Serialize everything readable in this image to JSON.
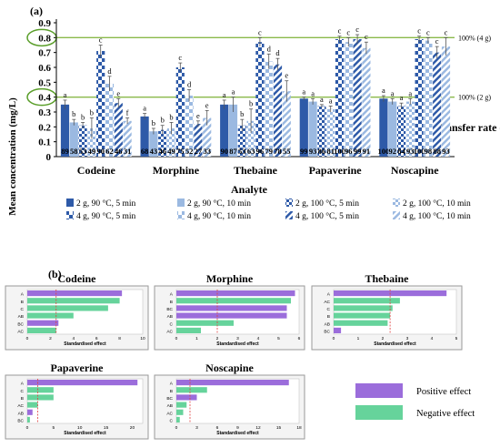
{
  "panel_a_label": "(a)",
  "panel_b_label": "(b)",
  "colors": {
    "s0": "#2e5aa8",
    "s1": "#9bb9e1",
    "s2": "#2e5aa8",
    "s3": "#9bb9e1",
    "s4": "#2e5aa8",
    "s5": "#9bb9e1",
    "s6": "#2e5aa8",
    "s7": "#9bb9e1",
    "positive": "#9b6ddb",
    "negative": "#66d39b",
    "refline": "#8ab94a",
    "errbar": "#555555"
  },
  "legend_b": {
    "positive": "Positive effect",
    "negative": "Negative effect"
  },
  "chart_data": [
    {
      "type": "bar",
      "ylabel": "Mean concentration (mg/L)",
      "xlabel": "Analyte",
      "right_label": "Transfer rate (%)",
      "ylim": [
        0,
        0.9
      ],
      "yticks": [
        "0",
        "0.1",
        "0.2",
        "0.3",
        "0.4",
        "0.5",
        "0.6",
        "0.7",
        "0.8",
        "0.9"
      ],
      "reflines": [
        {
          "y": 0.8,
          "label": "100% (4 g)"
        },
        {
          "y": 0.4,
          "label": "100% (2 g)"
        }
      ],
      "categories": [
        "Codeine",
        "Morphine",
        "Thebaine",
        "Papaverine",
        "Noscapine"
      ],
      "series": [
        {
          "name": "2 g, 90 °C, 5 min",
          "pattern": "solid-dark",
          "values": [
            0.35,
            0.27,
            0.35,
            0.39,
            0.39
          ],
          "err": [
            0.03,
            0.02,
            0.03,
            0.01,
            0.02
          ],
          "letters": [
            "a",
            "a",
            "a",
            "a",
            "a"
          ],
          "rates": [
            "89",
            "68",
            "90",
            "99",
            "100"
          ]
        },
        {
          "name": "2 g, 90 °C, 10 min",
          "pattern": "solid-light",
          "values": [
            0.23,
            0.17,
            0.35,
            0.37,
            0.37
          ],
          "err": [
            0.02,
            0.02,
            0.05,
            0.02,
            0.02
          ],
          "letters": [
            "b",
            "b",
            "a",
            "a",
            "a"
          ],
          "rates": [
            "58",
            "43",
            "87",
            "93",
            "92"
          ]
        },
        {
          "name": "2 g, 100 °C, 5 min",
          "pattern": "check-dark",
          "values": [
            0.21,
            0.18,
            0.21,
            0.34,
            0.34
          ],
          "err": [
            0.02,
            0.03,
            0.04,
            0.01,
            0.02
          ],
          "letters": [
            "b",
            "b",
            "b",
            "a",
            "a"
          ],
          "rates": [
            "53",
            "46",
            "53",
            "86",
            "84"
          ]
        },
        {
          "name": "2 g, 100 °C, 10 min",
          "pattern": "check-light",
          "values": [
            0.19,
            0.19,
            0.24,
            0.32,
            0.37
          ],
          "err": [
            0.07,
            0.04,
            0.08,
            0.02,
            0.02
          ],
          "letters": [
            "b",
            "b",
            "b",
            "a",
            "a"
          ],
          "rates": [
            "49",
            "49",
            "63",
            "81",
            "93"
          ]
        },
        {
          "name": "4 g, 90 °C, 5 min",
          "pattern": "check-dark-4g",
          "values": [
            0.71,
            0.6,
            0.77,
            0.79,
            0.79
          ],
          "err": [
            0.04,
            0.03,
            0.03,
            0.02,
            0.02
          ],
          "letters": [
            "c",
            "c",
            "c",
            "c",
            "c"
          ],
          "rates": [
            "90",
            "75",
            "96",
            "100",
            "100"
          ]
        },
        {
          "name": "4 g, 90 °C, 10 min",
          "pattern": "check-light-4g",
          "values": [
            0.49,
            0.41,
            0.64,
            0.77,
            0.78
          ],
          "err": [
            0.05,
            0.04,
            0.05,
            0.03,
            0.02
          ],
          "letters": [
            "d",
            "d",
            "d",
            "c",
            "c"
          ],
          "rates": [
            "62",
            "52",
            "79",
            "96",
            "98"
          ]
        },
        {
          "name": "4 g, 100 °C, 5 min",
          "pattern": "stripe-dark",
          "values": [
            0.36,
            0.22,
            0.62,
            0.79,
            0.7
          ],
          "err": [
            0.03,
            0.02,
            0.04,
            0.03,
            0.04
          ],
          "letters": [
            "e",
            "e",
            "d",
            "c",
            "c"
          ],
          "rates": [
            "46",
            "27",
            "78",
            "99",
            "88"
          ]
        },
        {
          "name": "4 g, 100 °C, 10 min",
          "pattern": "stripe-light",
          "values": [
            0.24,
            0.26,
            0.44,
            0.73,
            0.74
          ],
          "err": [
            0.02,
            0.05,
            0.07,
            0.04,
            0.06
          ],
          "letters": [
            "f",
            "e",
            "e",
            "c",
            "c"
          ],
          "rates": [
            "31",
            "33",
            "55",
            "91",
            "93"
          ]
        }
      ]
    },
    {
      "type": "bar-horizontal",
      "title": "Codeine",
      "xlabel": "Standardised effect",
      "xlim": [
        0,
        10
      ],
      "xticks": [
        "0",
        "2",
        "4",
        "6",
        "8",
        "10"
      ],
      "threshold": 2.5,
      "bars": [
        {
          "label": "A",
          "value": 8.2,
          "sign": "positive"
        },
        {
          "label": "B",
          "value": 8.0,
          "sign": "negative"
        },
        {
          "label": "C",
          "value": 7.0,
          "sign": "negative"
        },
        {
          "label": "AB",
          "value": 4.0,
          "sign": "negative"
        },
        {
          "label": "BC",
          "value": 2.7,
          "sign": "positive"
        },
        {
          "label": "AC",
          "value": 2.5,
          "sign": "negative"
        }
      ]
    },
    {
      "type": "bar-horizontal",
      "title": "Morphine",
      "xlabel": "Standardised effect",
      "xlim": [
        0,
        6
      ],
      "xticks": [
        "0",
        "1",
        "2",
        "3",
        "4",
        "5",
        "6"
      ],
      "threshold": 2.0,
      "bars": [
        {
          "label": "A",
          "value": 5.8,
          "sign": "positive"
        },
        {
          "label": "B",
          "value": 5.6,
          "sign": "negative"
        },
        {
          "label": "BC",
          "value": 5.4,
          "sign": "positive"
        },
        {
          "label": "AB",
          "value": 5.4,
          "sign": "positive"
        },
        {
          "label": "C",
          "value": 2.8,
          "sign": "negative"
        },
        {
          "label": "AC",
          "value": 1.2,
          "sign": "negative"
        }
      ]
    },
    {
      "type": "bar-horizontal",
      "title": "Thebaine",
      "xlabel": "Standardised effect",
      "xlim": [
        0,
        5
      ],
      "xticks": [
        "0",
        "1",
        "2",
        "3",
        "4",
        "5"
      ],
      "threshold": 2.3,
      "bars": [
        {
          "label": "A",
          "value": 4.6,
          "sign": "positive"
        },
        {
          "label": "AC",
          "value": 2.7,
          "sign": "negative"
        },
        {
          "label": "C",
          "value": 2.4,
          "sign": "negative"
        },
        {
          "label": "B",
          "value": 2.3,
          "sign": "negative"
        },
        {
          "label": "AB",
          "value": 2.2,
          "sign": "negative"
        },
        {
          "label": "BC",
          "value": 0.3,
          "sign": "positive"
        }
      ]
    },
    {
      "type": "bar-horizontal",
      "title": "Papaverine",
      "xlabel": "Standardised effect",
      "xlim": [
        0,
        22
      ],
      "xticks": [
        "0",
        "5",
        "10",
        "15",
        "20"
      ],
      "threshold": 2.0,
      "bars": [
        {
          "label": "A",
          "value": 21.0,
          "sign": "positive"
        },
        {
          "label": "C",
          "value": 5.0,
          "sign": "negative"
        },
        {
          "label": "B",
          "value": 5.0,
          "sign": "negative"
        },
        {
          "label": "AC",
          "value": 2.0,
          "sign": "negative"
        },
        {
          "label": "AB",
          "value": 1.0,
          "sign": "positive"
        },
        {
          "label": "BC",
          "value": 0.5,
          "sign": "negative"
        }
      ]
    },
    {
      "type": "bar-horizontal",
      "title": "Noscapine",
      "xlabel": "Standardised effect",
      "xlim": [
        0,
        18
      ],
      "xticks": [
        "0",
        "3",
        "6",
        "9",
        "12",
        "15",
        "18"
      ],
      "threshold": 2.0,
      "bars": [
        {
          "label": "A",
          "value": 16.5,
          "sign": "positive"
        },
        {
          "label": "B",
          "value": 4.5,
          "sign": "negative"
        },
        {
          "label": "BC",
          "value": 3.0,
          "sign": "positive"
        },
        {
          "label": "AB",
          "value": 1.5,
          "sign": "negative"
        },
        {
          "label": "AC",
          "value": 1.0,
          "sign": "negative"
        },
        {
          "label": "C",
          "value": 0.5,
          "sign": "negative"
        }
      ]
    }
  ]
}
